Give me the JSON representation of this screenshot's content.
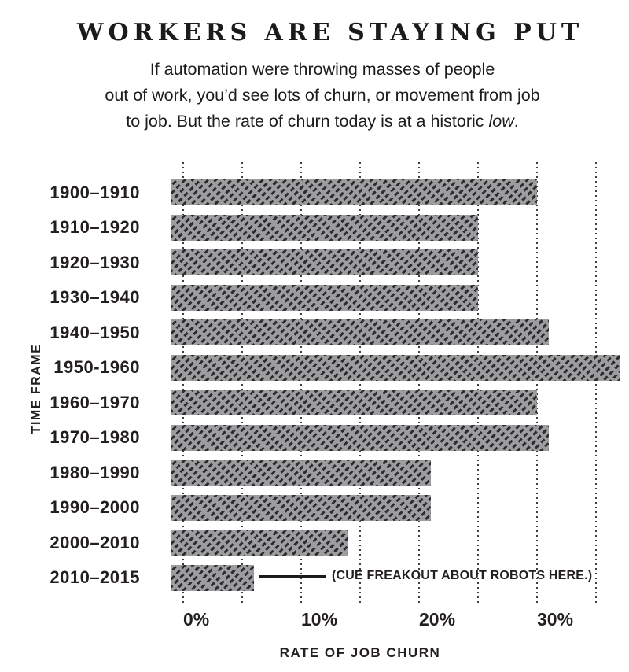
{
  "header": {
    "title": "WORKERS ARE STAYING PUT",
    "subtitle": {
      "line1": "If automation were throwing masses of people",
      "line2": "out of work, you’d see lots of churn, or movement from job",
      "line3_prefix": "to job. But the rate of churn today is at a historic ",
      "line3_italic": "low",
      "line3_suffix": "."
    }
  },
  "chart_data": {
    "type": "bar",
    "orientation": "horizontal",
    "categories": [
      "1900–1910",
      "1910–1920",
      "1920–1930",
      "1930–1940",
      "1940–1950",
      "1950-1960",
      "1960–1970",
      "1970–1980",
      "1980–1990",
      "1990–2000",
      "2000–2010",
      "2010–2015"
    ],
    "values": [
      30,
      25,
      25,
      25,
      31,
      37,
      30,
      31,
      21,
      21,
      14,
      6
    ],
    "unit": "percent",
    "xlabel": "RATE OF JOB CHURN",
    "ylabel": "TIME FRAME",
    "x_ticks": [
      {
        "label": "0%",
        "value": 0
      },
      {
        "label": "10%",
        "value": 10
      },
      {
        "label": "20%",
        "value": 20
      },
      {
        "label": "30%",
        "value": 30
      }
    ],
    "xlim": [
      0,
      35
    ],
    "gridline_step": 5,
    "grid_style": "dotted-vertical",
    "annotation": {
      "text": "(CUE FREAKOUT ABOUT ROBOTS HERE.)",
      "target_category": "2010–2015"
    },
    "colors": {
      "bar_fill": "#9d9da0",
      "bar_hatch": "#2c2c2e",
      "gridline": "#3f3f41",
      "text": "#231f20"
    },
    "hatch": "diagonal-dashes"
  }
}
